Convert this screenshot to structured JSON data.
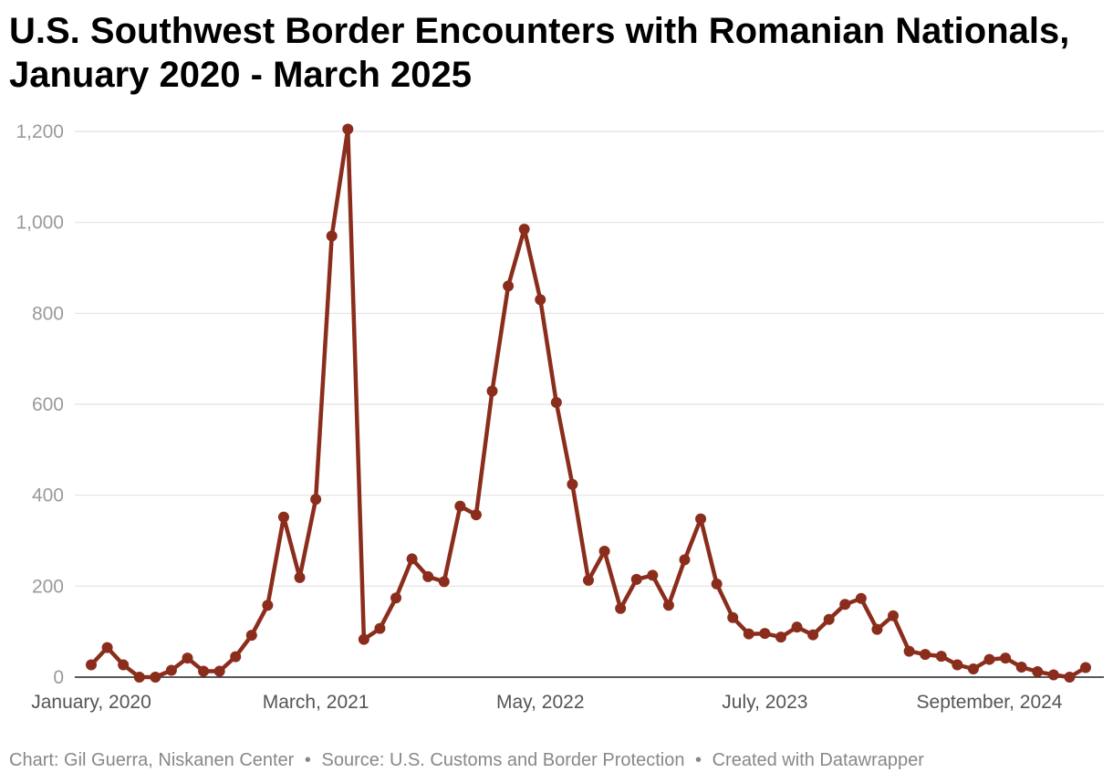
{
  "chart_data": {
    "type": "line",
    "title": "U.S. Southwest Border Encounters with Romanian Nationals, January 2020 - March 2025",
    "xlabel": "",
    "ylabel": "",
    "ylim": [
      0,
      1200
    ],
    "yticks": [
      "0",
      "200",
      "400",
      "600",
      "800",
      "1,000",
      "1,200"
    ],
    "ytick_values": [
      0,
      200,
      400,
      600,
      800,
      1000,
      1200
    ],
    "xticks": [
      "January, 2020",
      "March, 2021",
      "May, 2022",
      "July, 2023",
      "September, 2024"
    ],
    "xtick_indices": [
      0,
      14,
      28,
      42,
      56
    ],
    "grid": true,
    "color": "#8b2d1c",
    "x_start": "January 2020",
    "x_end": "March 2025",
    "x_step": "month",
    "series": [
      {
        "values": [
          27,
          65,
          27,
          0,
          0,
          15,
          42,
          13,
          13,
          45,
          92,
          158,
          352,
          219,
          391,
          970,
          1205,
          83,
          107,
          174,
          260,
          221,
          210,
          376,
          357,
          629,
          860,
          985,
          830,
          604,
          424,
          213,
          277,
          151,
          215,
          224,
          158,
          258,
          348,
          205,
          131,
          95,
          96,
          88,
          110,
          93,
          127,
          160,
          173,
          105,
          135,
          57,
          50,
          46,
          27,
          18,
          39,
          42,
          22,
          12,
          5,
          0,
          21
        ]
      }
    ]
  },
  "footer": {
    "credit": "Chart: Gil Guerra, Niskanen Center",
    "source": "Source: U.S. Customs and Border Protection",
    "tool": "Created with Datawrapper",
    "separator": "•"
  }
}
